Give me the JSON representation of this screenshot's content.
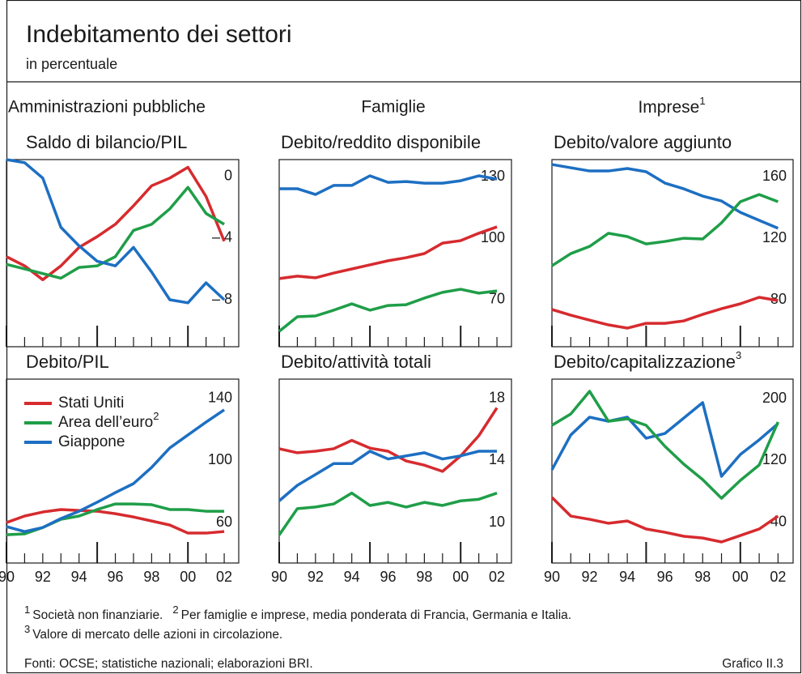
{
  "header": {
    "title": "Indebitamento dei settori",
    "subtitle": "in percentuale"
  },
  "columns": [
    {
      "label": "Amministrazioni pubbliche"
    },
    {
      "label": "Famiglie"
    },
    {
      "label": "Imprese",
      "note": "1"
    }
  ],
  "chart_data": [
    {
      "type": "line",
      "title": "Saldo di bilancio/PIL",
      "x": [
        1990,
        1991,
        1992,
        1993,
        1994,
        1995,
        1996,
        1997,
        1998,
        1999,
        2000,
        2001,
        2002
      ],
      "xlim": [
        1990,
        2002.8
      ],
      "ylim": [
        -11.05,
        1.1
      ],
      "yticks": [
        0,
        {
          "value": -4,
          "label": "– 4"
        },
        {
          "value": -8,
          "label": "– 8"
        }
      ],
      "series": [
        {
          "color": "#d62b2f",
          "values": [
            -5.2,
            -5.8,
            -6.7,
            -5.8,
            -4.6,
            -3.9,
            -3.1,
            -1.9,
            -0.6,
            -0.1,
            0.6,
            -1.3,
            -4.2
          ]
        },
        {
          "color": "#1f9e48",
          "values": [
            -5.7,
            -6.0,
            -6.3,
            -6.6,
            -5.9,
            -5.8,
            -5.2,
            -3.5,
            -3.1,
            -2.1,
            -0.7,
            -2.4,
            -3.1
          ]
        },
        {
          "color": "#1d6fc2",
          "values": [
            1.1,
            0.9,
            -0.1,
            -3.3,
            -4.5,
            -5.5,
            -5.8,
            -4.6,
            -6.2,
            -8.0,
            -8.2,
            -6.9,
            -8.0
          ]
        }
      ]
    },
    {
      "type": "line",
      "title": "Debito/reddito disponibile",
      "x": [
        1990,
        1991,
        1992,
        1993,
        1994,
        1995,
        1996,
        1997,
        1998,
        1999,
        2000,
        2001,
        2002
      ],
      "xlim": [
        1990,
        2002.8
      ],
      "ylim": [
        47.1,
        138.3
      ],
      "yticks": [
        130,
        100,
        70
      ],
      "series": [
        {
          "color": "#1d6fc2",
          "values": [
            124.1,
            124.1,
            121.3,
            125.7,
            125.7,
            130.4,
            127.2,
            127.6,
            126.8,
            126.8,
            128,
            130.4,
            128.8
          ]
        },
        {
          "color": "#d62b2f",
          "values": [
            80.3,
            81.5,
            80.7,
            83,
            85,
            87,
            89,
            90.5,
            92.5,
            97.6,
            98.8,
            102.4,
            105.5
          ]
        },
        {
          "color": "#1f9e48",
          "values": [
            54.6,
            61.7,
            62.1,
            64.9,
            68,
            64.9,
            67.2,
            67.6,
            70.8,
            73.6,
            75.1,
            73.2,
            74.3
          ]
        }
      ]
    },
    {
      "type": "line",
      "title": "Debito/valore aggiunto",
      "x": [
        1990,
        1991,
        1992,
        1993,
        1994,
        1995,
        1996,
        1997,
        1998,
        1999,
        2000,
        2001,
        2002
      ],
      "xlim": [
        1990,
        2002.8
      ],
      "ylim": [
        49.5,
        171.1
      ],
      "yticks": [
        160,
        120,
        80
      ],
      "series": [
        {
          "color": "#1d6fc2",
          "values": [
            167.9,
            165.8,
            163.7,
            163.7,
            165.3,
            163.2,
            155.8,
            152.1,
            147.4,
            144.2,
            136.8,
            131.6,
            126.5
          ]
        },
        {
          "color": "#1f9e48",
          "values": [
            102.1,
            110,
            114.7,
            123.2,
            121.1,
            116.3,
            117.9,
            120,
            119.5,
            130,
            143.7,
            148.4,
            143.7
          ]
        },
        {
          "color": "#d62b2f",
          "values": [
            73.7,
            70,
            66.8,
            63.7,
            61.6,
            64.7,
            64.7,
            66.3,
            70.5,
            74.2,
            77.4,
            81.6,
            79.5
          ]
        }
      ]
    },
    {
      "type": "line",
      "title": "Debito/PIL",
      "x": [
        1990,
        1991,
        1992,
        1993,
        1994,
        1995,
        1996,
        1997,
        1998,
        1999,
        2000,
        2001,
        2002
      ],
      "xlim": [
        1990,
        2002.8
      ],
      "ylim": [
        33.9,
        152.5
      ],
      "xticks": [
        {
          "value": 1990,
          "label": "90"
        },
        {
          "value": 1992,
          "label": "92"
        },
        {
          "value": 1994,
          "label": "94"
        },
        {
          "value": 1996,
          "label": "96"
        },
        {
          "value": 1998,
          "label": "98"
        },
        {
          "value": 2000,
          "label": "00"
        },
        {
          "value": 2002,
          "label": "02"
        }
      ],
      "yticks": [
        140,
        100,
        60
      ],
      "legend": "upper left",
      "series": [
        {
          "name": "Stati Uniti",
          "color": "#d62b2f",
          "values": [
            60,
            64.2,
            66.8,
            68.4,
            67.8,
            67.3,
            65.7,
            63.6,
            61,
            58.4,
            53.2,
            53.2,
            54.2
          ]
        },
        {
          "name": "Area dell’euro",
          "note": "2",
          "color": "#1f9e48",
          "values": [
            52.1,
            52.7,
            56.8,
            62.1,
            64.2,
            68.4,
            72,
            72,
            71.5,
            68.4,
            68.4,
            67.3,
            67.3
          ]
        },
        {
          "name": "Giappone",
          "color": "#1d6fc2",
          "values": [
            57.4,
            54.2,
            56.8,
            62.6,
            67.3,
            73.1,
            79.3,
            85.1,
            95.6,
            108.1,
            116.5,
            124.8,
            132.7
          ]
        }
      ]
    },
    {
      "type": "line",
      "title": "Debito/attività totali",
      "x": [
        1990,
        1991,
        1992,
        1993,
        1994,
        1995,
        1996,
        1997,
        1998,
        1999,
        2000,
        2001,
        2002
      ],
      "xlim": [
        1990,
        2002.8
      ],
      "ylim": [
        7.39,
        19.25
      ],
      "xticks": [
        {
          "value": 1990,
          "label": "90"
        },
        {
          "value": 1992,
          "label": "92"
        },
        {
          "value": 1994,
          "label": "94"
        },
        {
          "value": 1996,
          "label": "96"
        },
        {
          "value": 1998,
          "label": "98"
        },
        {
          "value": 2000,
          "label": "00"
        },
        {
          "value": 2002,
          "label": "02"
        }
      ],
      "yticks": [
        18,
        14,
        10
      ],
      "series": [
        {
          "color": "#d62b2f",
          "values": [
            14.76,
            14.5,
            14.6,
            14.76,
            15.3,
            14.8,
            14.6,
            13.97,
            13.7,
            13.3,
            14.3,
            15.6,
            17.4
          ]
        },
        {
          "color": "#1d6fc2",
          "values": [
            11.4,
            12.4,
            13.1,
            13.8,
            13.8,
            14.6,
            14.1,
            14.3,
            14.5,
            14.1,
            14.3,
            14.6,
            14.6
          ]
        },
        {
          "color": "#1f9e48",
          "values": [
            9.2,
            10.9,
            11.0,
            11.2,
            11.9,
            11.1,
            11.3,
            11.0,
            11.3,
            11.1,
            11.4,
            11.5,
            11.9
          ]
        }
      ]
    },
    {
      "type": "line",
      "title": "Debito/capitalizzazione",
      "title_note": "3",
      "x": [
        1990,
        1991,
        1992,
        1993,
        1994,
        1995,
        1996,
        1997,
        1998,
        1999,
        2000,
        2001,
        2002
      ],
      "xlim": [
        1990,
        2002.8
      ],
      "ylim": [
        -12.3,
        225.1
      ],
      "xticks": [
        {
          "value": 1990,
          "label": "90"
        },
        {
          "value": 1992,
          "label": "92"
        },
        {
          "value": 1994,
          "label": "94"
        },
        {
          "value": 1996,
          "label": "96"
        },
        {
          "value": 1998,
          "label": "98"
        },
        {
          "value": 2000,
          "label": "00"
        },
        {
          "value": 2002,
          "label": "02"
        }
      ],
      "yticks": [
        200,
        120,
        40
      ],
      "series": [
        {
          "color": "#1d6fc2",
          "values": [
            108,
            153,
            176,
            170.7,
            176,
            148.8,
            155,
            174.9,
            194.8,
            99.6,
            127.8,
            146.7,
            167.6
          ]
        },
        {
          "color": "#1f9e48",
          "values": [
            165.5,
            180.1,
            209.4,
            170.7,
            173.9,
            165.5,
            138.3,
            115.3,
            95.4,
            71.3,
            94.4,
            114.2,
            169.7
          ]
        },
        {
          "color": "#d62b2f",
          "values": [
            72.4,
            48.3,
            44.1,
            39,
            42,
            31.6,
            27.4,
            22.2,
            20,
            14.9,
            23.2,
            31.6,
            48.3
          ]
        }
      ]
    }
  ],
  "footnotes": [
    {
      "mark": "1",
      "text": "Società non finanziarie."
    },
    {
      "mark": "2",
      "text": "Per famiglie e imprese, media ponderata di Francia, Germania e Italia."
    },
    {
      "mark": "3",
      "text": "Valore di mercato delle azioni in circolazione."
    }
  ],
  "source": "Fonti: OCSE; statistiche nazionali; elaborazioni BRI.",
  "figure_id": "Grafico II.3"
}
